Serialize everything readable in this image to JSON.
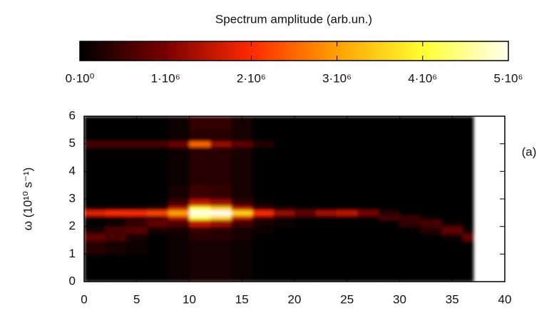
{
  "chart_data": {
    "type": "heatmap",
    "title": "Spectrum amplitude (arb.un.)",
    "ylabel": "ω (10¹⁰ s⁻¹)",
    "annotation": "(a)",
    "xbins": [
      0,
      2,
      4,
      6,
      8,
      10,
      12,
      14,
      16,
      18,
      20,
      22,
      24,
      26,
      28,
      30,
      32,
      34,
      36,
      37
    ],
    "ybins": [
      0,
      0.5,
      1,
      1.5,
      1.75,
      2,
      2.25,
      2.4,
      2.6,
      2.75,
      3,
      3.5,
      4,
      4.5,
      4.9,
      5.1,
      5.5,
      6
    ],
    "z": [
      [
        0,
        0,
        0,
        0,
        100000.0,
        200000.0,
        200000.0,
        100000.0,
        50000.0,
        0,
        0,
        0,
        0,
        0,
        0,
        0,
        0,
        0,
        0
      ],
      [
        0,
        0,
        0,
        0,
        100000.0,
        200000.0,
        200000.0,
        100000.0,
        50000.0,
        0,
        0,
        0,
        0,
        0,
        0,
        0,
        0,
        0,
        0
      ],
      [
        300000.0,
        200000.0,
        100000.0,
        0,
        100000.0,
        200000.0,
        200000.0,
        100000.0,
        50000.0,
        0,
        0,
        0,
        0,
        0,
        0,
        0,
        0,
        0,
        0
      ],
      [
        800000.0,
        600000.0,
        200000.0,
        0,
        100000.0,
        300000.0,
        300000.0,
        200000.0,
        50000.0,
        0,
        0,
        0,
        0,
        0,
        0,
        0,
        0,
        100000.0,
        800000.0
      ],
      [
        200000.0,
        600000.0,
        700000.0,
        200000.0,
        200000.0,
        400000.0,
        300000.0,
        200000.0,
        100000.0,
        0,
        0,
        0,
        0,
        0,
        0,
        0,
        300000.0,
        800000.0,
        100000.0
      ],
      [
        50000.0,
        100000.0,
        400000.0,
        800000.0,
        600000.0,
        1500000.0,
        1200000.0,
        500000.0,
        200000.0,
        100000.0,
        0,
        0,
        0,
        0,
        0,
        400000.0,
        600000.0,
        100000.0,
        0
      ],
      [
        100000.0,
        200000.0,
        300000.0,
        500000.0,
        1500000.0,
        4000000.0,
        3500000.0,
        1500000.0,
        500000.0,
        200000.0,
        100000.0,
        0,
        0,
        0,
        600000.0,
        500000.0,
        100000.0,
        0,
        0
      ],
      [
        1800000.0,
        2000000.0,
        2000000.0,
        2200000.0,
        3000000.0,
        5000000.0,
        5000000.0,
        3500000.0,
        2000000.0,
        1200000.0,
        800000.0,
        1300000.0,
        1500000.0,
        1000000.0,
        300000.0,
        0,
        0,
        0,
        0
      ],
      [
        200000.0,
        200000.0,
        200000.0,
        300000.0,
        1500000.0,
        4000000.0,
        3500000.0,
        1500000.0,
        400000.0,
        200000.0,
        100000.0,
        0,
        0,
        0,
        0,
        0,
        0,
        0,
        0
      ],
      [
        0,
        0,
        0,
        0,
        500000.0,
        1500000.0,
        1200000.0,
        400000.0,
        100000.0,
        0,
        0,
        0,
        0,
        0,
        0,
        0,
        0,
        0,
        0
      ],
      [
        0,
        0,
        0,
        0,
        200000.0,
        500000.0,
        400000.0,
        200000.0,
        50000.0,
        0,
        0,
        0,
        0,
        0,
        0,
        0,
        0,
        0,
        0
      ],
      [
        0,
        0,
        0,
        0,
        100000.0,
        300000.0,
        300000.0,
        200000.0,
        50000.0,
        0,
        0,
        0,
        0,
        0,
        0,
        0,
        0,
        0,
        0
      ],
      [
        0,
        0,
        0,
        0,
        100000.0,
        300000.0,
        300000.0,
        200000.0,
        50000.0,
        0,
        0,
        0,
        0,
        0,
        0,
        0,
        0,
        0,
        0
      ],
      [
        0,
        0,
        0,
        0,
        100000.0,
        300000.0,
        300000.0,
        200000.0,
        50000.0,
        0,
        0,
        0,
        0,
        0,
        0,
        0,
        0,
        0,
        0
      ],
      [
        600000.0,
        600000.0,
        600000.0,
        600000.0,
        900000.0,
        2500000.0,
        1200000.0,
        800000.0,
        300000.0,
        0,
        0,
        0,
        0,
        0,
        0,
        0,
        0,
        0,
        0
      ],
      [
        0,
        0,
        0,
        0,
        100000.0,
        300000.0,
        300000.0,
        200000.0,
        50000.0,
        0,
        0,
        0,
        0,
        0,
        0,
        0,
        0,
        0,
        0
      ],
      [
        0,
        0,
        0,
        0,
        100000.0,
        400000.0,
        400000.0,
        200000.0,
        50000.0,
        0,
        0,
        0,
        0,
        0,
        0,
        0,
        0,
        0,
        0
      ]
    ],
    "colorscale": [
      "#000000",
      "#7a0000",
      "#ff2a00",
      "#ffa000",
      "#ffff30",
      "#fffff0"
    ],
    "zlim": [
      0,
      5000000
    ],
    "zticks": [
      {
        "value": 0,
        "label": "0·10⁰"
      },
      {
        "value": 1000000,
        "label": "1·10⁶"
      },
      {
        "value": 2000000,
        "label": "2·10⁶"
      },
      {
        "value": 3000000,
        "label": "3·10⁶"
      },
      {
        "value": 4000000,
        "label": "4·10⁶"
      },
      {
        "value": 5000000,
        "label": "5·10⁶"
      }
    ],
    "xlim": [
      0,
      40
    ],
    "xticks": [
      0,
      5,
      10,
      15,
      20,
      25,
      30,
      35,
      40
    ],
    "ylim": [
      0,
      6
    ],
    "yticks": [
      0,
      1,
      2,
      3,
      4,
      5,
      6
    ]
  }
}
